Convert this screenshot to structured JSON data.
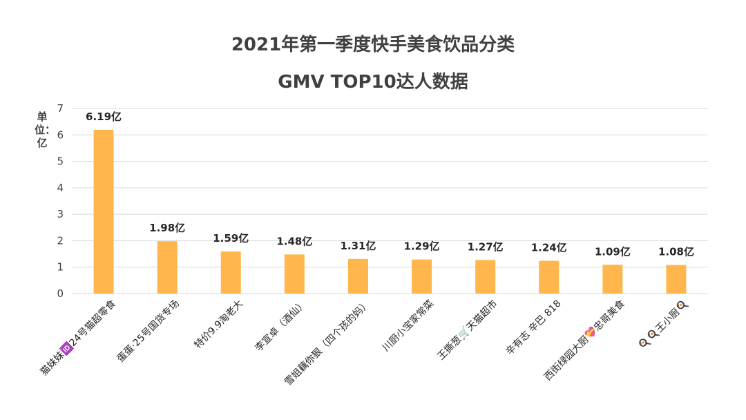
{
  "chart_data": {
    "type": "bar",
    "title": "2021年第一季度快手美食饮品分类",
    "subtitle": "GMV TOP10达人数据",
    "ylabel": "单位：亿",
    "xlabel": "",
    "ylim": [
      0,
      7
    ],
    "yticks": [
      0,
      1,
      2,
      3,
      4,
      5,
      6,
      7
    ],
    "grid": true,
    "bar_color": "#FFB74D",
    "categories": [
      "猫妹妹🆔24号猫超零食",
      "蛋蛋·25号国货专场",
      "特价9.9淘老大",
      "李宣卓（酒仙）",
      "雪姐藕你狠（四个孩的妈）",
      "川厨小宝家常菜",
      "王撕葱🛒天猫超市",
      "辛有志 辛巴 818",
      "西街绿园大厨💝忠哥美食",
      "🍳🍳王小厨🍳"
    ],
    "values": [
      6.19,
      1.98,
      1.59,
      1.48,
      1.31,
      1.29,
      1.27,
      1.24,
      1.09,
      1.08
    ],
    "data_labels": [
      "6.19亿",
      "1.98亿",
      "1.59亿",
      "1.48亿",
      "1.31亿",
      "1.29亿",
      "1.27亿",
      "1.24亿",
      "1.09亿",
      "1.08亿"
    ]
  }
}
